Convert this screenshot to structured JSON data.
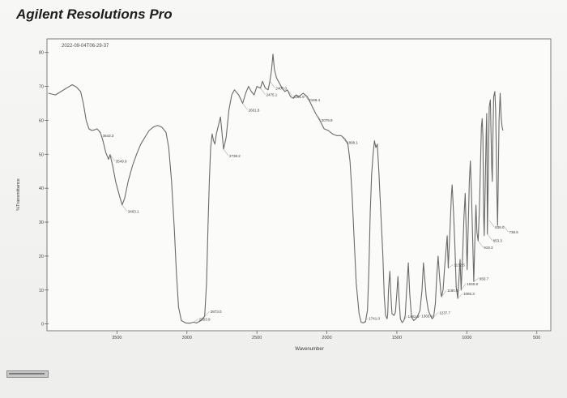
{
  "app": {
    "title": "Agilent Resolutions Pro"
  },
  "chart_data": {
    "type": "line",
    "title": "",
    "timestamp": "2022-09-04T06-29-37",
    "xlabel": "Wavenumber",
    "ylabel": "%Transmittance",
    "x_reversed": true,
    "xlim": [
      4000,
      400
    ],
    "ylim": [
      -2,
      84
    ],
    "x_ticks": [
      3500,
      3000,
      2500,
      2000,
      1500,
      1000,
      500
    ],
    "y_ticks": [
      80,
      70,
      60,
      50,
      40,
      30,
      20,
      10,
      0
    ],
    "grid": false,
    "series": [
      {
        "color": "#6a6a6a",
        "points": [
          [
            3990,
            68.0
          ],
          [
            3940,
            67.5
          ],
          [
            3900,
            68.5
          ],
          [
            3860,
            69.5
          ],
          [
            3820,
            70.5
          ],
          [
            3790,
            69.8
          ],
          [
            3760,
            68.5
          ],
          [
            3740,
            65.0
          ],
          [
            3720,
            60.0
          ],
          [
            3700,
            57.5
          ],
          [
            3680,
            57.0
          ],
          [
            3660,
            57.2
          ],
          [
            3643,
            57.5
          ],
          [
            3620,
            56.5
          ],
          [
            3600,
            54.0
          ],
          [
            3580,
            50.5
          ],
          [
            3560,
            48.5
          ],
          [
            3549,
            49.9
          ],
          [
            3530,
            46.5
          ],
          [
            3510,
            42.0
          ],
          [
            3480,
            37.5
          ],
          [
            3463,
            35.1
          ],
          [
            3445,
            37.0
          ],
          [
            3420,
            42.0
          ],
          [
            3390,
            46.5
          ],
          [
            3360,
            50.0
          ],
          [
            3330,
            53.0
          ],
          [
            3300,
            55.0
          ],
          [
            3270,
            57.0
          ],
          [
            3240,
            58.0
          ],
          [
            3210,
            58.5
          ],
          [
            3180,
            58.0
          ],
          [
            3150,
            56.5
          ],
          [
            3130,
            52.0
          ],
          [
            3110,
            42.0
          ],
          [
            3090,
            28.0
          ],
          [
            3075,
            15.0
          ],
          [
            3060,
            5.0
          ],
          [
            3040,
            1.0
          ],
          [
            3010,
            0.3
          ],
          [
            2980,
            0.2
          ],
          [
            2953.9,
            0.5
          ],
          [
            2930,
            0.3
          ],
          [
            2900,
            1.0
          ],
          [
            2873,
            2.3
          ],
          [
            2860,
            12.0
          ],
          [
            2850,
            28.0
          ],
          [
            2840,
            42.0
          ],
          [
            2830,
            52.0
          ],
          [
            2820,
            56.0
          ],
          [
            2810,
            54.0
          ],
          [
            2800,
            53.0
          ],
          [
            2790,
            56.0
          ],
          [
            2760,
            61.0
          ],
          [
            2738.2,
            51.5
          ],
          [
            2720,
            55.0
          ],
          [
            2700,
            63.0
          ],
          [
            2680,
            67.5
          ],
          [
            2660,
            69.0
          ],
          [
            2630,
            67.5
          ],
          [
            2601.8,
            65.0
          ],
          [
            2580,
            68.0
          ],
          [
            2560,
            70.0
          ],
          [
            2540,
            68.5
          ],
          [
            2520,
            67.5
          ],
          [
            2500,
            70.0
          ],
          [
            2475.1,
            69.5
          ],
          [
            2460,
            71.5
          ],
          [
            2440,
            69.5
          ],
          [
            2420,
            69.0
          ],
          [
            2407,
            71.5
          ],
          [
            2395,
            75.0
          ],
          [
            2385,
            79.5
          ],
          [
            2375,
            75.0
          ],
          [
            2360,
            72.5
          ],
          [
            2340,
            71.0
          ],
          [
            2320,
            69.5
          ],
          [
            2300,
            68.5
          ],
          [
            2281.9,
            69.0
          ],
          [
            2260,
            67.0
          ],
          [
            2240,
            66.5
          ],
          [
            2220,
            67.5
          ],
          [
            2200,
            67.0
          ],
          [
            2169.4,
            68.0
          ],
          [
            2140,
            67.0
          ],
          [
            2110,
            64.5
          ],
          [
            2079.9,
            62.0
          ],
          [
            2050,
            60.0
          ],
          [
            2020,
            57.5
          ],
          [
            1990,
            57.0
          ],
          [
            1960,
            56.0
          ],
          [
            1930,
            55.5
          ],
          [
            1898.1,
            55.5
          ],
          [
            1870,
            54.5
          ],
          [
            1850,
            53.0
          ],
          [
            1835,
            48.0
          ],
          [
            1820,
            38.0
          ],
          [
            1805,
            25.0
          ],
          [
            1790,
            12.0
          ],
          [
            1770,
            3.0
          ],
          [
            1755,
            0.5
          ],
          [
            1741,
            0.3
          ],
          [
            1725,
            0.6
          ],
          [
            1710,
            4.0
          ],
          [
            1700,
            16.0
          ],
          [
            1690,
            33.0
          ],
          [
            1680,
            44.0
          ],
          [
            1670,
            50.0
          ],
          [
            1660,
            54.0
          ],
          [
            1650,
            52.0
          ],
          [
            1640,
            53.0
          ],
          [
            1630,
            46.0
          ],
          [
            1615,
            33.0
          ],
          [
            1600,
            20.0
          ],
          [
            1590,
            8.0
          ],
          [
            1580,
            2.5
          ],
          [
            1570,
            1.5
          ],
          [
            1565,
            3.0
          ],
          [
            1560,
            10.0
          ],
          [
            1550,
            15.5
          ],
          [
            1542,
            8.0
          ],
          [
            1535,
            3.0
          ],
          [
            1520,
            2.5
          ],
          [
            1510,
            3.5
          ],
          [
            1500,
            9.0
          ],
          [
            1492,
            14.0
          ],
          [
            1485,
            8.0
          ],
          [
            1475,
            1.5
          ],
          [
            1462.2,
            0.4
          ],
          [
            1450,
            1.0
          ],
          [
            1440,
            2.5
          ],
          [
            1430,
            10.0
          ],
          [
            1418,
            18.0
          ],
          [
            1408,
            9.0
          ],
          [
            1395,
            2.0
          ],
          [
            1380,
            1.0
          ],
          [
            1365.4,
            1.5
          ],
          [
            1350,
            2.5
          ],
          [
            1335,
            4.0
          ],
          [
            1320,
            10.0
          ],
          [
            1310,
            18.0
          ],
          [
            1300,
            13.0
          ],
          [
            1290,
            8.0
          ],
          [
            1275,
            4.0
          ],
          [
            1260,
            2.5
          ],
          [
            1248,
            1.5
          ],
          [
            1237.7,
            2.0
          ],
          [
            1225,
            6.0
          ],
          [
            1215,
            14.0
          ],
          [
            1205,
            20.0
          ],
          [
            1195,
            14.0
          ],
          [
            1185,
            9.0
          ],
          [
            1180.8,
            8.0
          ],
          [
            1170,
            10.0
          ],
          [
            1160,
            16.0
          ],
          [
            1150,
            21.0
          ],
          [
            1140,
            26.0
          ],
          [
            1132.5,
            16.5
          ],
          [
            1120,
            28.0
          ],
          [
            1110,
            38.0
          ],
          [
            1105,
            41.0
          ],
          [
            1095,
            33.0
          ],
          [
            1085,
            23.0
          ],
          [
            1076,
            11.0
          ],
          [
            1065.3,
            7.5
          ],
          [
            1055,
            14.0
          ],
          [
            1048,
            19.0
          ],
          [
            1040.8,
            10.0
          ],
          [
            1030,
            20.0
          ],
          [
            1020,
            32.0
          ],
          [
            1012,
            38.5
          ],
          [
            1005,
            28.0
          ],
          [
            998,
            16.0
          ],
          [
            990,
            29.0
          ],
          [
            982,
            42.0
          ],
          [
            975,
            48.0
          ],
          [
            968,
            40.0
          ],
          [
            960,
            28.0
          ],
          [
            950.7,
            12.5
          ],
          [
            942,
            26.0
          ],
          [
            935,
            35.0
          ],
          [
            928,
            27.0
          ],
          [
            919.3,
            24.5
          ],
          [
            910,
            34.0
          ],
          [
            902,
            48.0
          ],
          [
            896,
            58.0
          ],
          [
            890,
            60.5
          ],
          [
            885,
            55.0
          ],
          [
            880,
            32.0
          ],
          [
            876,
            26.0
          ],
          [
            870,
            38.0
          ],
          [
            862,
            56.0
          ],
          [
            858,
            62.0
          ],
          [
            853.3,
            26.5
          ],
          [
            846,
            45.0
          ],
          [
            840,
            64.0
          ],
          [
            832,
            66.0
          ],
          [
            826,
            54.0
          ],
          [
            822,
            46.0
          ],
          [
            818,
            42.0
          ],
          [
            814,
            55.0
          ],
          [
            808,
            67.0
          ],
          [
            800,
            68.5
          ],
          [
            794,
            63.0
          ],
          [
            789,
            50.0
          ],
          [
            785,
            38.0
          ],
          [
            780,
            29.0
          ],
          [
            776,
            40.0
          ],
          [
            770,
            60.0
          ],
          [
            762,
            68.0
          ],
          [
            755,
            61.0
          ],
          [
            748,
            58.0
          ],
          [
            742,
            57.0
          ]
        ]
      }
    ],
    "peak_labels": [
      {
        "text": "3643.3",
        "x": 3643.3,
        "y": 57.5
      },
      {
        "text": "3549.9",
        "x": 3549.9,
        "y": 49.9
      },
      {
        "text": "3463.1",
        "x": 3463.1,
        "y": 35.1
      },
      {
        "text": "2953.9",
        "x": 2953.9,
        "y": 0.5
      },
      {
        "text": "2873.0",
        "x": 2873.0,
        "y": 2.3
      },
      {
        "text": "2738.2",
        "x": 2738.2,
        "y": 51.5
      },
      {
        "text": "2601.8",
        "x": 2601.8,
        "y": 65.0
      },
      {
        "text": "2475.1",
        "x": 2475.1,
        "y": 69.5
      },
      {
        "text": "2407.0",
        "x": 2407.0,
        "y": 71.5
      },
      {
        "text": "2281.9",
        "x": 2281.9,
        "y": 69.0
      },
      {
        "text": "2169.4",
        "x": 2169.4,
        "y": 68.0
      },
      {
        "text": "2079.9",
        "x": 2079.9,
        "y": 62.0
      },
      {
        "text": "1898.1",
        "x": 1898.1,
        "y": 55.5
      },
      {
        "text": "1741.0",
        "x": 1741.0,
        "y": 0.3
      },
      {
        "text": "1462.2",
        "x": 1462.2,
        "y": 0.4
      },
      {
        "text": "1365.4",
        "x": 1365.4,
        "y": 1.5
      },
      {
        "text": "1237.7",
        "x": 1237.7,
        "y": 2.0
      },
      {
        "text": "1180.8",
        "x": 1180.8,
        "y": 8.0
      },
      {
        "text": "1132.5",
        "x": 1132.5,
        "y": 16.5
      },
      {
        "text": "1065.3",
        "x": 1065.3,
        "y": 7.5
      },
      {
        "text": "1040.8",
        "x": 1040.8,
        "y": 10.0
      },
      {
        "text": "950.7",
        "x": 950.7,
        "y": 12.5
      },
      {
        "text": "919.3",
        "x": 919.3,
        "y": 24.5
      },
      {
        "text": "853.3",
        "x": 853.3,
        "y": 26.5
      },
      {
        "text": "839.0",
        "x": 839.0,
        "y": 30.5
      },
      {
        "text": "738.6",
        "x": 738.6,
        "y": 29.0
      }
    ]
  }
}
